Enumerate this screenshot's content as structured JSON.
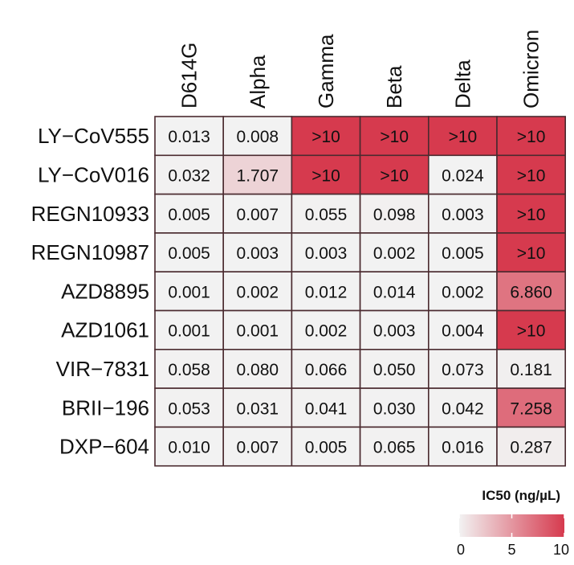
{
  "chart_data": {
    "type": "heatmap",
    "columns": [
      "D614G",
      "Alpha",
      "Gamma",
      "Beta",
      "Delta",
      "Omicron"
    ],
    "rows": [
      {
        "name": "LY−CoV555",
        "labels": [
          "0.013",
          "0.008",
          ">10",
          ">10",
          ">10",
          ">10"
        ],
        "values": [
          0.013,
          0.008,
          10,
          10,
          10,
          10
        ]
      },
      {
        "name": "LY−CoV016",
        "labels": [
          "0.032",
          "1.707",
          ">10",
          ">10",
          "0.024",
          ">10"
        ],
        "values": [
          0.032,
          1.707,
          10,
          10,
          0.024,
          10
        ]
      },
      {
        "name": "REGN10933",
        "labels": [
          "0.005",
          "0.007",
          "0.055",
          "0.098",
          "0.003",
          ">10"
        ],
        "values": [
          0.005,
          0.007,
          0.055,
          0.098,
          0.003,
          10
        ]
      },
      {
        "name": "REGN10987",
        "labels": [
          "0.005",
          "0.003",
          "0.003",
          "0.002",
          "0.005",
          ">10"
        ],
        "values": [
          0.005,
          0.003,
          0.003,
          0.002,
          0.005,
          10
        ]
      },
      {
        "name": "AZD8895",
        "labels": [
          "0.001",
          "0.002",
          "0.012",
          "0.014",
          "0.002",
          "6.860"
        ],
        "values": [
          0.001,
          0.002,
          0.012,
          0.014,
          0.002,
          6.86
        ]
      },
      {
        "name": "AZD1061",
        "labels": [
          "0.001",
          "0.001",
          "0.002",
          "0.003",
          "0.004",
          ">10"
        ],
        "values": [
          0.001,
          0.001,
          0.002,
          0.003,
          0.004,
          10
        ]
      },
      {
        "name": "VIR−7831",
        "labels": [
          "0.058",
          "0.080",
          "0.066",
          "0.050",
          "0.073",
          "0.181"
        ],
        "values": [
          0.058,
          0.08,
          0.066,
          0.05,
          0.073,
          0.181
        ]
      },
      {
        "name": "BRII−196",
        "labels": [
          "0.053",
          "0.031",
          "0.041",
          "0.030",
          "0.042",
          "7.258"
        ],
        "values": [
          0.053,
          0.031,
          0.041,
          0.03,
          0.042,
          7.258
        ]
      },
      {
        "name": "DXP−604",
        "labels": [
          "0.010",
          "0.007",
          "0.005",
          "0.065",
          "0.016",
          "0.287"
        ],
        "values": [
          0.01,
          0.007,
          0.005,
          0.065,
          0.016,
          0.287
        ]
      }
    ],
    "value_range": [
      0,
      10
    ],
    "color_low": "#f2f2f2",
    "color_high": "#d63a4e",
    "border_color": "#4a2a2f",
    "legend": {
      "title": "IC50 (ng/µL)",
      "ticks": [
        "0",
        "5",
        "10"
      ],
      "tick_values": [
        0,
        5,
        10
      ],
      "placement": "bottom-right"
    }
  }
}
